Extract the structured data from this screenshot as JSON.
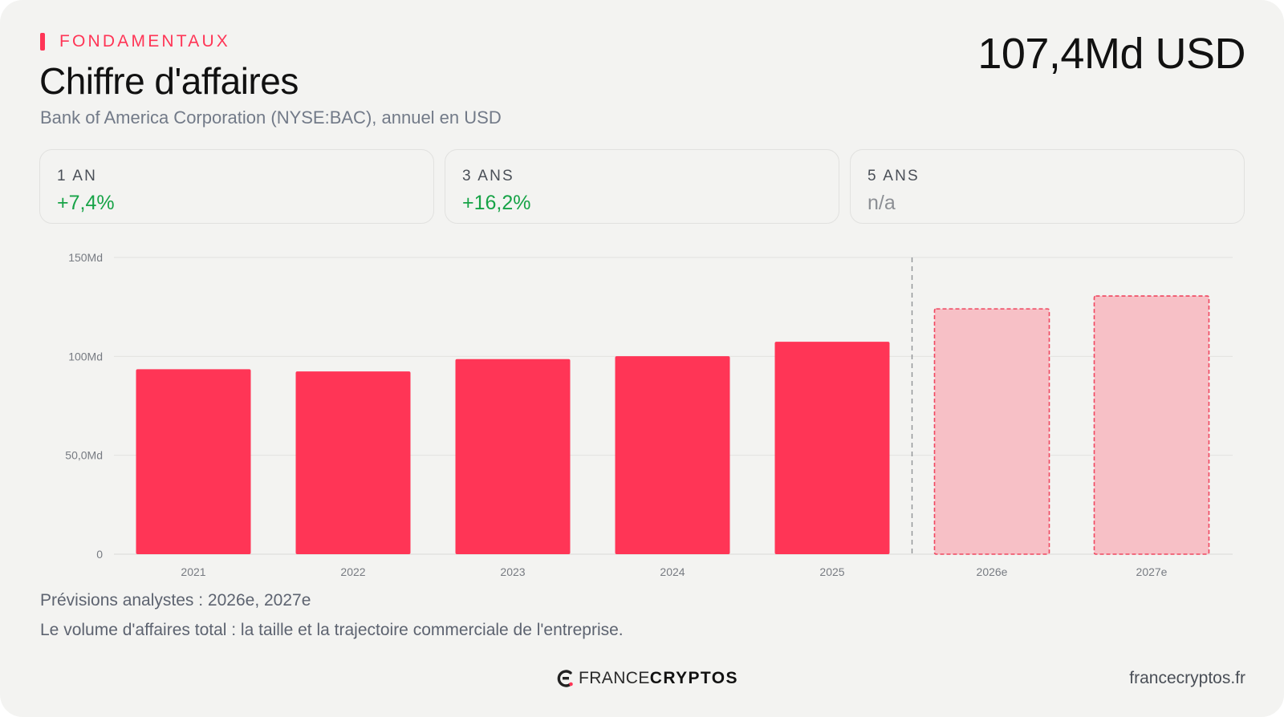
{
  "header": {
    "eyebrow": "FONDAMENTAUX",
    "title": "Chiffre d'affaires",
    "subtitle": "Bank of America Corporation (NYSE:BAC), annuel en USD",
    "headline_value": "107,4Md USD"
  },
  "stats": [
    {
      "label": "1 AN",
      "value": "+7,4%"
    },
    {
      "label": "3 ANS",
      "value": "+16,2%"
    },
    {
      "label": "5 ANS",
      "value": "n/a"
    }
  ],
  "colors": {
    "accent": "#ff3556",
    "actual_bar": "#ff3556",
    "forecast_fill": "#f7c0c6",
    "forecast_stroke": "#f0465f",
    "positive": "#17a347",
    "muted": "#8c8f94"
  },
  "chart_data": {
    "type": "bar",
    "categories": [
      "2021",
      "2022",
      "2023",
      "2024",
      "2025",
      "2026e",
      "2027e"
    ],
    "values": [
      93.5,
      92.4,
      98.6,
      100.1,
      107.4,
      124.0,
      130.5
    ],
    "forecast": [
      false,
      false,
      false,
      false,
      false,
      true,
      true
    ],
    "yticks": [
      "0",
      "50,0Md",
      "100Md",
      "150Md"
    ],
    "ytick_values": [
      0,
      50,
      100,
      150
    ],
    "ylim": [
      0,
      150
    ],
    "unit": "Md USD",
    "grid": true,
    "forecast_separator": "between 2025 and 2026e"
  },
  "notes": {
    "forecast": "Prévisions analystes : 2026e, 2027e",
    "description": "Le volume d'affaires total : la taille et la trajectoire commerciale de l'entreprise."
  },
  "footer": {
    "logo_part1": "FRANCE",
    "logo_part2": "CRYPTOS",
    "logo_icon": "francecryptos-logo-icon",
    "site": "francecryptos.fr"
  }
}
